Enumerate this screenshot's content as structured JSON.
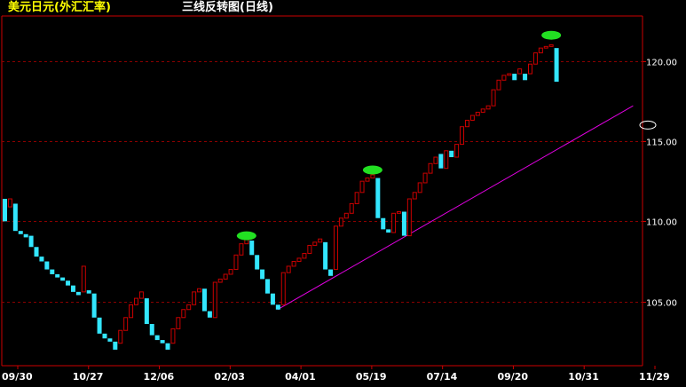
{
  "header": {
    "instrument": "美元日元(外汇汇率)",
    "chart_name": "三线反转图(日线)"
  },
  "colors": {
    "background": "#000000",
    "up": "#cc0000",
    "down": "#33e6ff",
    "grid": "#8b0000",
    "trendline": "#e000e0",
    "marker": "#22e022",
    "axis_text": "#ffffff"
  },
  "chart_data": {
    "type": "bar",
    "subtype": "three-line-break",
    "ylim": [
      101.0,
      122.8
    ],
    "y_ticks": [
      105.0,
      110.0,
      115.0,
      120.0
    ],
    "y_tick_labels": [
      "105.00",
      "110.00",
      "115.00",
      "120.00"
    ],
    "x_labels": [
      "09/30",
      "10/27",
      "12/06",
      "02/03",
      "04/01",
      "05/19",
      "07/14",
      "09/20",
      "10/31",
      "11/29"
    ],
    "bricks": [
      {
        "low": 110.0,
        "high": 111.4,
        "dir": "down"
      },
      {
        "low": 110.9,
        "high": 111.4,
        "dir": "up"
      },
      {
        "low": 109.4,
        "high": 111.1,
        "dir": "down"
      },
      {
        "low": 109.2,
        "high": 109.4,
        "dir": "down"
      },
      {
        "low": 109.0,
        "high": 109.2,
        "dir": "down"
      },
      {
        "low": 108.4,
        "high": 109.1,
        "dir": "down"
      },
      {
        "low": 107.8,
        "high": 108.4,
        "dir": "down"
      },
      {
        "low": 107.5,
        "high": 107.8,
        "dir": "down"
      },
      {
        "low": 107.0,
        "high": 107.5,
        "dir": "down"
      },
      {
        "low": 106.7,
        "high": 107.0,
        "dir": "down"
      },
      {
        "low": 106.5,
        "high": 106.7,
        "dir": "down"
      },
      {
        "low": 106.3,
        "high": 106.5,
        "dir": "down"
      },
      {
        "low": 106.0,
        "high": 106.3,
        "dir": "down"
      },
      {
        "low": 105.6,
        "high": 106.0,
        "dir": "down"
      },
      {
        "low": 105.4,
        "high": 105.6,
        "dir": "down"
      },
      {
        "low": 105.6,
        "high": 107.2,
        "dir": "up"
      },
      {
        "low": 105.5,
        "high": 105.7,
        "dir": "down"
      },
      {
        "low": 104.0,
        "high": 105.5,
        "dir": "down"
      },
      {
        "low": 103.0,
        "high": 104.0,
        "dir": "down"
      },
      {
        "low": 102.7,
        "high": 103.0,
        "dir": "down"
      },
      {
        "low": 102.5,
        "high": 102.7,
        "dir": "down"
      },
      {
        "low": 102.0,
        "high": 102.5,
        "dir": "down"
      },
      {
        "low": 102.4,
        "high": 103.2,
        "dir": "up"
      },
      {
        "low": 103.2,
        "high": 104.0,
        "dir": "up"
      },
      {
        "low": 104.0,
        "high": 104.8,
        "dir": "up"
      },
      {
        "low": 104.8,
        "high": 105.2,
        "dir": "up"
      },
      {
        "low": 105.2,
        "high": 105.6,
        "dir": "up"
      },
      {
        "low": 103.6,
        "high": 105.2,
        "dir": "down"
      },
      {
        "low": 102.9,
        "high": 103.6,
        "dir": "down"
      },
      {
        "low": 102.6,
        "high": 102.9,
        "dir": "down"
      },
      {
        "low": 102.4,
        "high": 102.6,
        "dir": "down"
      },
      {
        "low": 102.0,
        "high": 102.4,
        "dir": "down"
      },
      {
        "low": 102.4,
        "high": 103.3,
        "dir": "up"
      },
      {
        "low": 103.3,
        "high": 104.0,
        "dir": "up"
      },
      {
        "low": 104.0,
        "high": 104.5,
        "dir": "up"
      },
      {
        "low": 104.5,
        "high": 104.8,
        "dir": "up"
      },
      {
        "low": 104.8,
        "high": 105.6,
        "dir": "up"
      },
      {
        "low": 105.6,
        "high": 105.8,
        "dir": "up"
      },
      {
        "low": 104.4,
        "high": 105.8,
        "dir": "down"
      },
      {
        "low": 104.0,
        "high": 104.4,
        "dir": "down"
      },
      {
        "low": 104.0,
        "high": 106.2,
        "dir": "up"
      },
      {
        "low": 106.2,
        "high": 106.4,
        "dir": "up"
      },
      {
        "low": 106.4,
        "high": 106.7,
        "dir": "up"
      },
      {
        "low": 106.7,
        "high": 107.0,
        "dir": "up"
      },
      {
        "low": 107.0,
        "high": 107.9,
        "dir": "up"
      },
      {
        "low": 107.9,
        "high": 108.6,
        "dir": "up"
      },
      {
        "low": 108.6,
        "high": 108.9,
        "dir": "up"
      },
      {
        "low": 107.9,
        "high": 108.8,
        "dir": "down"
      },
      {
        "low": 107.0,
        "high": 107.9,
        "dir": "down"
      },
      {
        "low": 106.4,
        "high": 107.0,
        "dir": "down"
      },
      {
        "low": 105.5,
        "high": 106.4,
        "dir": "down"
      },
      {
        "low": 104.8,
        "high": 105.5,
        "dir": "down"
      },
      {
        "low": 104.5,
        "high": 104.8,
        "dir": "down"
      },
      {
        "low": 104.8,
        "high": 106.8,
        "dir": "up"
      },
      {
        "low": 106.8,
        "high": 107.2,
        "dir": "up"
      },
      {
        "low": 107.2,
        "high": 107.5,
        "dir": "up"
      },
      {
        "low": 107.5,
        "high": 107.7,
        "dir": "up"
      },
      {
        "low": 107.7,
        "high": 108.0,
        "dir": "up"
      },
      {
        "low": 108.0,
        "high": 108.5,
        "dir": "up"
      },
      {
        "low": 108.5,
        "high": 108.7,
        "dir": "up"
      },
      {
        "low": 108.7,
        "high": 108.9,
        "dir": "up"
      },
      {
        "low": 107.0,
        "high": 108.7,
        "dir": "down"
      },
      {
        "low": 106.6,
        "high": 107.0,
        "dir": "down"
      },
      {
        "low": 107.0,
        "high": 109.7,
        "dir": "up"
      },
      {
        "low": 109.7,
        "high": 110.2,
        "dir": "up"
      },
      {
        "low": 110.2,
        "high": 110.5,
        "dir": "up"
      },
      {
        "low": 110.5,
        "high": 111.1,
        "dir": "up"
      },
      {
        "low": 111.1,
        "high": 111.8,
        "dir": "up"
      },
      {
        "low": 111.8,
        "high": 112.5,
        "dir": "up"
      },
      {
        "low": 112.5,
        "high": 112.7,
        "dir": "up"
      },
      {
        "low": 112.7,
        "high": 112.9,
        "dir": "up"
      },
      {
        "low": 110.2,
        "high": 112.7,
        "dir": "down"
      },
      {
        "low": 109.5,
        "high": 110.2,
        "dir": "down"
      },
      {
        "low": 109.3,
        "high": 109.5,
        "dir": "down"
      },
      {
        "low": 109.3,
        "high": 110.5,
        "dir": "up"
      },
      {
        "low": 110.5,
        "high": 110.6,
        "dir": "up"
      },
      {
        "low": 109.1,
        "high": 110.6,
        "dir": "down"
      },
      {
        "low": 109.1,
        "high": 111.4,
        "dir": "up"
      },
      {
        "low": 111.4,
        "high": 111.8,
        "dir": "up"
      },
      {
        "low": 111.8,
        "high": 112.4,
        "dir": "up"
      },
      {
        "low": 112.4,
        "high": 113.0,
        "dir": "up"
      },
      {
        "low": 113.0,
        "high": 113.6,
        "dir": "up"
      },
      {
        "low": 113.6,
        "high": 114.0,
        "dir": "up"
      },
      {
        "low": 113.3,
        "high": 114.2,
        "dir": "down"
      },
      {
        "low": 113.3,
        "high": 114.4,
        "dir": "up"
      },
      {
        "low": 114.0,
        "high": 114.4,
        "dir": "down"
      },
      {
        "low": 114.0,
        "high": 114.8,
        "dir": "up"
      },
      {
        "low": 114.8,
        "high": 115.9,
        "dir": "up"
      },
      {
        "low": 115.9,
        "high": 116.3,
        "dir": "up"
      },
      {
        "low": 116.3,
        "high": 116.6,
        "dir": "up"
      },
      {
        "low": 116.6,
        "high": 116.8,
        "dir": "up"
      },
      {
        "low": 116.8,
        "high": 117.0,
        "dir": "up"
      },
      {
        "low": 117.0,
        "high": 117.2,
        "dir": "up"
      },
      {
        "low": 117.2,
        "high": 118.2,
        "dir": "up"
      },
      {
        "low": 118.2,
        "high": 118.8,
        "dir": "up"
      },
      {
        "low": 118.8,
        "high": 119.1,
        "dir": "up"
      },
      {
        "low": 119.1,
        "high": 119.2,
        "dir": "up"
      },
      {
        "low": 118.8,
        "high": 119.2,
        "dir": "down"
      },
      {
        "low": 119.2,
        "high": 119.5,
        "dir": "up"
      },
      {
        "low": 118.8,
        "high": 119.2,
        "dir": "down"
      },
      {
        "low": 119.2,
        "high": 119.8,
        "dir": "up"
      },
      {
        "low": 119.8,
        "high": 120.5,
        "dir": "up"
      },
      {
        "low": 120.5,
        "high": 120.8,
        "dir": "up"
      },
      {
        "low": 120.8,
        "high": 120.9,
        "dir": "up"
      },
      {
        "low": 120.9,
        "high": 121.0,
        "dir": "up"
      },
      {
        "low": 118.7,
        "high": 120.8,
        "dir": "down"
      }
    ],
    "reversal_markers": [
      {
        "brick": 46,
        "value": 109.1
      },
      {
        "brick": 70,
        "value": 113.2
      },
      {
        "brick": 104,
        "value": 121.6
      }
    ],
    "trendline": {
      "from": {
        "brick": 52,
        "value": 104.5
      },
      "to": {
        "brick": 120,
        "value": 117.2
      }
    },
    "open_marker": {
      "value": 116.0
    }
  }
}
